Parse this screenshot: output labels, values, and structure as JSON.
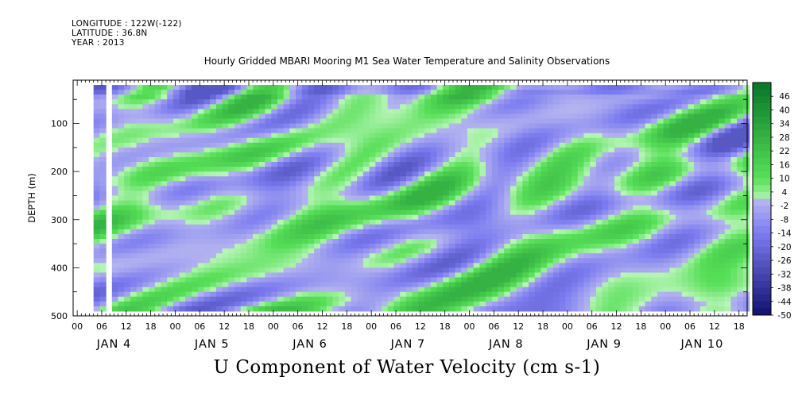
{
  "header": {
    "longitude": "LONGITUDE : 122W(-122)",
    "latitude": "LATITUDE : 36.8N",
    "year": "YEAR : 2013",
    "title": "Hourly Gridded MBARI Mooring M1 Sea Water Temperature and Salinity Observations"
  },
  "footer": {
    "variable_title": "U Component of Water Velocity (cm s-1)"
  },
  "colors": {
    "pos_light": "#b8f5b8",
    "pos_mid": "#58e058",
    "pos_dark": "#0a7a2a",
    "neg_light": "#b4b4f0",
    "neg_mid": "#7c7cf0",
    "neg_dark": "#10106e"
  },
  "chart_data": {
    "type": "heatmap",
    "title": "Hourly Gridded MBARI Mooring M1 Sea Water Temperature and Salinity Observations",
    "xlabel": "",
    "ylabel": "DEPTH (m)",
    "ylim": [
      500,
      10
    ],
    "y_tick_labels": [
      "100",
      "200",
      "300",
      "400",
      "500"
    ],
    "y_ticks": [
      100,
      200,
      300,
      400,
      500
    ],
    "x_hour_labels": [
      "00",
      "06",
      "12",
      "18",
      "00",
      "06",
      "12",
      "18",
      "00",
      "06",
      "12",
      "18",
      "00",
      "06",
      "12",
      "18",
      "00",
      "06",
      "12",
      "18",
      "00",
      "06",
      "12",
      "18",
      "00",
      "06",
      "12",
      "18"
    ],
    "x_day_labels": [
      "JAN 4",
      "JAN 5",
      "JAN 6",
      "JAN 7",
      "JAN 8",
      "JAN 9",
      "JAN 10"
    ],
    "x_range_hours": [
      -1,
      164
    ],
    "colorbar_labels": [
      "46",
      "40",
      "34",
      "28",
      "22",
      "16",
      "10",
      "4",
      "-2",
      "-8",
      "-14",
      "-20",
      "-26",
      "-32",
      "-38",
      "-44",
      "-50"
    ],
    "colorbar_range": [
      -50,
      52
    ],
    "value_range_shown": [
      -26,
      28
    ],
    "grid": false
  }
}
